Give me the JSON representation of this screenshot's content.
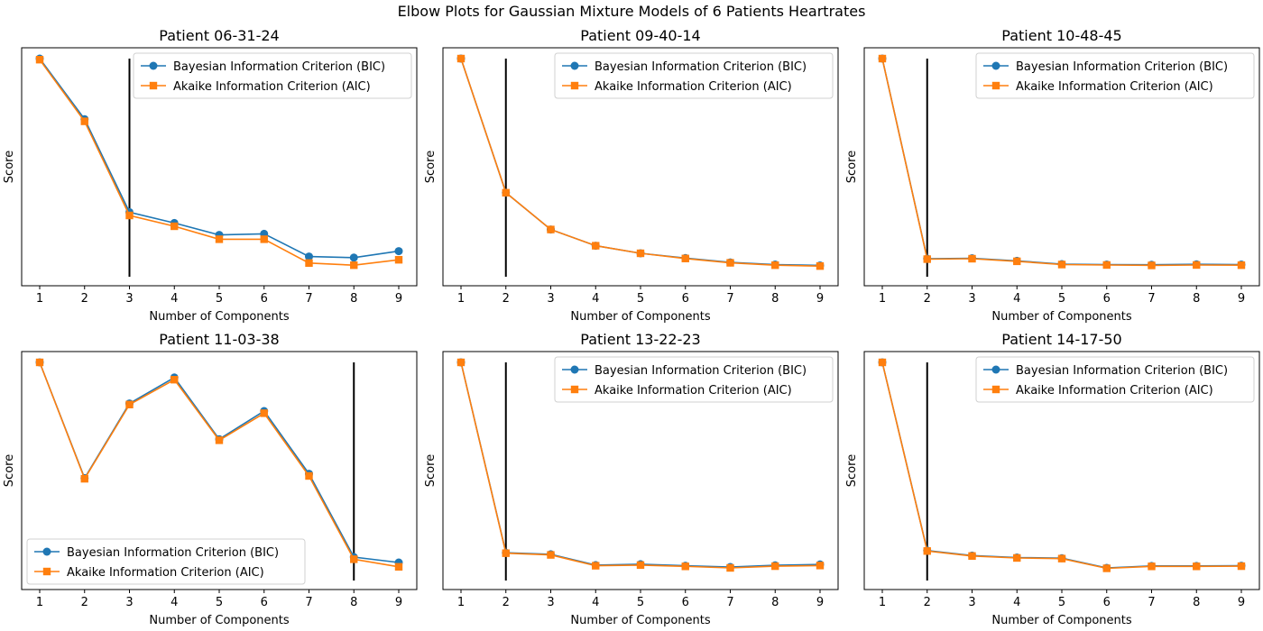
{
  "figure_title": "Elbow Plots for Gaussian Mixture Models of 6 Patients Heartrates",
  "colors": {
    "bic": "#1f77b4",
    "aic": "#ff7f0e",
    "elbow_line": "#000000"
  },
  "chart_data": [
    {
      "type": "line",
      "title": "Patient 06-31-24",
      "xlabel": "Number of Components",
      "ylabel": "Score",
      "x": [
        1,
        2,
        3,
        4,
        5,
        6,
        7,
        8,
        9
      ],
      "ylim": [
        0,
        100
      ],
      "elbow": 3,
      "legend": "top-right",
      "series": [
        {
          "name": "Bayesian Information Criterion (BIC)",
          "marker": "circle",
          "values": [
            100,
            72,
            29,
            24,
            18.5,
            19,
            8.5,
            8,
            11
          ]
        },
        {
          "name": "Akaike Information Criterion (AIC)",
          "marker": "square",
          "values": [
            99.5,
            71,
            27.5,
            22.5,
            16.5,
            16.5,
            5.5,
            4.5,
            7
          ]
        }
      ]
    },
    {
      "type": "line",
      "title": "Patient 09-40-14",
      "xlabel": "Number of Components",
      "ylabel": "Score",
      "x": [
        1,
        2,
        3,
        4,
        5,
        6,
        7,
        8,
        9
      ],
      "ylim": [
        0,
        100
      ],
      "elbow": 2,
      "legend": "top-right",
      "series": [
        {
          "name": "Bayesian Information Criterion (BIC)",
          "marker": "circle",
          "values": [
            100,
            38,
            21,
            13.5,
            10,
            7.8,
            5.8,
            4.8,
            4.4
          ]
        },
        {
          "name": "Akaike Information Criterion (AIC)",
          "marker": "square",
          "values": [
            100,
            38,
            21,
            13.5,
            10,
            7.6,
            5.6,
            4.5,
            4.1
          ]
        }
      ]
    },
    {
      "type": "line",
      "title": "Patient 10-48-45",
      "xlabel": "Number of Components",
      "ylabel": "Score",
      "x": [
        1,
        2,
        3,
        4,
        5,
        6,
        7,
        8,
        9
      ],
      "ylim": [
        0,
        100
      ],
      "elbow": 2,
      "legend": "top-right",
      "series": [
        {
          "name": "Bayesian Information Criterion (BIC)",
          "marker": "circle",
          "values": [
            100,
            7.5,
            7.7,
            6.5,
            5,
            4.8,
            4.7,
            4.9,
            4.8
          ]
        },
        {
          "name": "Akaike Information Criterion (AIC)",
          "marker": "square",
          "values": [
            100,
            7.3,
            7.5,
            6.3,
            4.8,
            4.6,
            4.4,
            4.6,
            4.5
          ]
        }
      ]
    },
    {
      "type": "line",
      "title": "Patient 11-03-38",
      "xlabel": "Number of Components",
      "ylabel": "Score",
      "x": [
        1,
        2,
        3,
        4,
        5,
        6,
        7,
        8,
        9
      ],
      "ylim": [
        0,
        100
      ],
      "elbow": 8,
      "legend": "bottom-left",
      "series": [
        {
          "name": "Bayesian Information Criterion (BIC)",
          "marker": "circle",
          "values": [
            100,
            46.5,
            81,
            93,
            64.5,
            77.5,
            48.5,
            10,
            7.5
          ]
        },
        {
          "name": "Akaike Information Criterion (AIC)",
          "marker": "square",
          "values": [
            100,
            46.2,
            80.5,
            92,
            64,
            76.5,
            47.5,
            9,
            5.5
          ]
        }
      ]
    },
    {
      "type": "line",
      "title": "Patient 13-22-23",
      "xlabel": "Number of Components",
      "ylabel": "Score",
      "x": [
        1,
        2,
        3,
        4,
        5,
        6,
        7,
        8,
        9
      ],
      "ylim": [
        0,
        100
      ],
      "elbow": 2,
      "legend": "top-right",
      "series": [
        {
          "name": "Bayesian Information Criterion (BIC)",
          "marker": "circle",
          "values": [
            100,
            12,
            11.3,
            6.3,
            6.7,
            6,
            5.4,
            6.2,
            6.6
          ]
        },
        {
          "name": "Akaike Information Criterion (AIC)",
          "marker": "square",
          "values": [
            100,
            11.8,
            11,
            6,
            6.3,
            5.7,
            5,
            5.8,
            6.1
          ]
        }
      ]
    },
    {
      "type": "line",
      "title": "Patient 14-17-50",
      "xlabel": "Number of Components",
      "ylabel": "Score",
      "x": [
        1,
        2,
        3,
        4,
        5,
        6,
        7,
        8,
        9
      ],
      "ylim": [
        0,
        100
      ],
      "elbow": 2,
      "legend": "top-right",
      "series": [
        {
          "name": "Bayesian Information Criterion (BIC)",
          "marker": "circle",
          "values": [
            100,
            13,
            10.7,
            9.8,
            9.5,
            5,
            5.9,
            5.9,
            6
          ]
        },
        {
          "name": "Akaike Information Criterion (AIC)",
          "marker": "square",
          "values": [
            100,
            12.8,
            10.5,
            9.6,
            9.3,
            4.8,
            5.7,
            5.7,
            5.8
          ]
        }
      ]
    }
  ]
}
